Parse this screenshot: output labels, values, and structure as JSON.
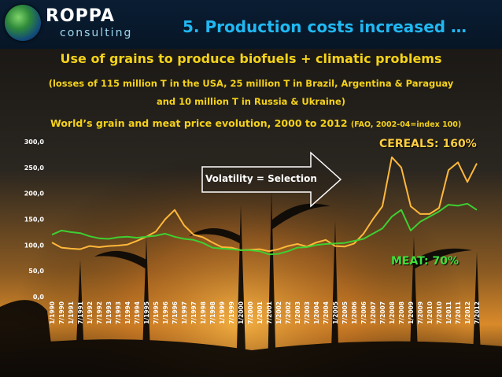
{
  "logo": {
    "name": "ROPPA",
    "sub": "consulting"
  },
  "slide_title": "5. Production costs increased …",
  "subtitle": "Use of grains to produce biofuels + climatic problems",
  "losses_line1": "(losses of 115 million T in the USA, 25 million T in Brazil, Argentina & Paraguay",
  "losses_line2": "and 10 million T in Russia & Ukraine)",
  "chart_title": "World’s grain and meat price evolution, 2000 to 2012",
  "chart_note": "(FAO, 2002-04=index 100)",
  "callout": "Volatility = Selection",
  "colors": {
    "cereals": "#ffb83a",
    "meat": "#3ecf32",
    "title": "#20b8f2",
    "text": "#f5d21a"
  },
  "chart_data": {
    "type": "line",
    "title": "World’s grain and meat price evolution, 2000 to 2012",
    "ylim": [
      0,
      300
    ],
    "yticks": [
      "0,0",
      "50,0",
      "100,0",
      "150,0",
      "200,0",
      "250,0",
      "300,0"
    ],
    "x": [
      "1/1990",
      "7/1990",
      "1/1991",
      "7/1991",
      "1/1992",
      "7/1992",
      "1/1993",
      "7/1993",
      "1/1994",
      "7/1994",
      "1/1995",
      "7/1995",
      "1/1996",
      "7/1996",
      "1/1997",
      "7/1997",
      "1/1998",
      "7/1998",
      "1/1999",
      "7/1999",
      "1/2000",
      "7/2000",
      "1/2001",
      "7/2001",
      "1/2002",
      "7/2002",
      "1/2003",
      "7/2003",
      "1/2004",
      "7/2004",
      "1/2005",
      "7/2005",
      "1/2006",
      "7/2006",
      "1/2007",
      "7/2007",
      "1/2008",
      "7/2008",
      "1/2009",
      "7/2009",
      "1/2010",
      "7/2010",
      "1/2011",
      "7/2011",
      "1/2012",
      "7/2012"
    ],
    "series": [
      {
        "name": "CEREALS: 160%",
        "values": [
          105,
          95,
          93,
          92,
          98,
          96,
          98,
          99,
          101,
          108,
          116,
          126,
          150,
          168,
          138,
          120,
          115,
          105,
          96,
          95,
          90,
          91,
          92,
          88,
          92,
          98,
          102,
          97,
          105,
          110,
          98,
          97,
          103,
          122,
          150,
          175,
          270,
          250,
          175,
          160,
          160,
          172,
          245,
          260,
          222,
          258
        ]
      },
      {
        "name": "MEAT: 70%",
        "values": [
          120,
          128,
          125,
          123,
          117,
          113,
          112,
          115,
          116,
          114,
          116,
          118,
          122,
          116,
          112,
          110,
          104,
          95,
          93,
          92,
          90,
          90,
          88,
          82,
          83,
          88,
          95,
          96,
          100,
          102,
          103,
          104,
          108,
          112,
          122,
          132,
          155,
          168,
          128,
          145,
          155,
          165,
          178,
          176,
          180,
          168
        ]
      }
    ],
    "grid": false
  }
}
